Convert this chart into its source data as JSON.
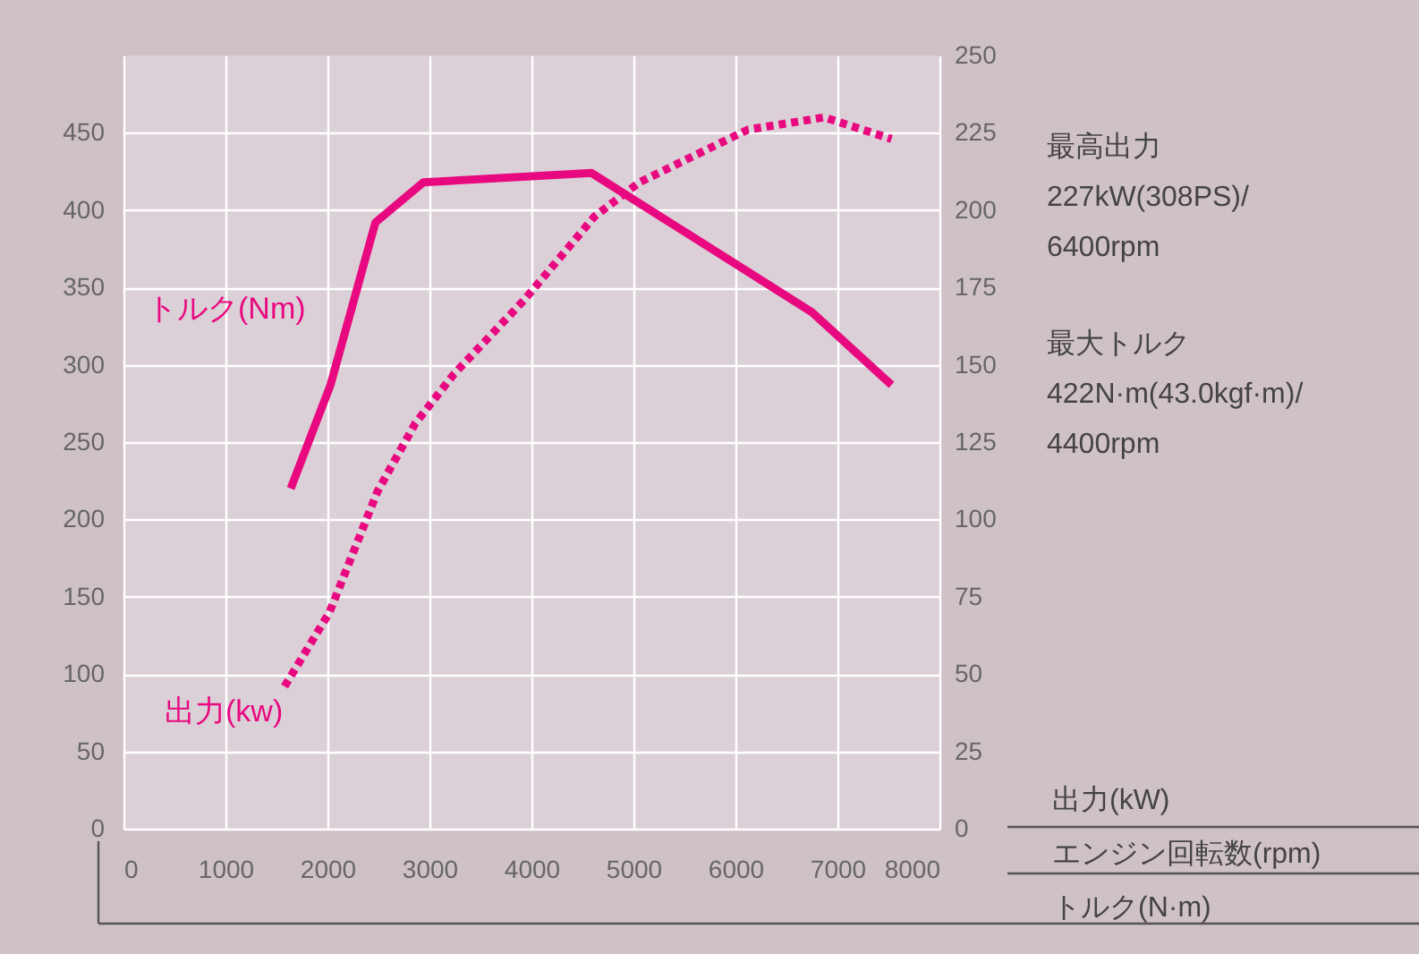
{
  "chart_data": {
    "type": "line",
    "xlim": [
      0,
      8000
    ],
    "xticks": [
      0,
      1000,
      2000,
      3000,
      4000,
      5000,
      6000,
      7000,
      8000
    ],
    "ylim": [
      0,
      500
    ],
    "yticks": [
      0,
      50,
      100,
      150,
      200,
      250,
      300,
      350,
      400,
      450
    ],
    "y2lim": [
      0,
      250
    ],
    "y2ticks": [
      0,
      25,
      50,
      75,
      100,
      125,
      150,
      175,
      200,
      225,
      250
    ],
    "grid": true,
    "marker": "none",
    "series": [
      {
        "name": "トルク(Nm)",
        "color": "#e8087f",
        "line_style": "solid",
        "x": [
          1640,
          2030,
          2470,
          2940,
          4590,
          6750,
          7530
        ],
        "values": [
          220,
          287,
          392,
          418,
          424,
          334,
          287
        ]
      },
      {
        "name": "出力(kw)",
        "color": "#e8087f",
        "line_style": "dotted",
        "axis": "y2",
        "x": [
          1580,
          2020,
          2490,
          2860,
          3240,
          3930,
          4620,
          5060,
          6120,
          6870,
          7530
        ],
        "values": [
          46,
          70,
          109,
          131,
          147,
          171,
          198,
          209,
          226,
          230,
          223
        ]
      }
    ],
    "annotations": [
      "最高出力",
      "227kW(308PS)/",
      "6400rpm",
      "最大トルク",
      "422N·m(43.0kgf·m)/",
      "4400rpm",
      "出力(kW)",
      "エンジン回転数(rpm)",
      "トルク(N·m)"
    ]
  }
}
